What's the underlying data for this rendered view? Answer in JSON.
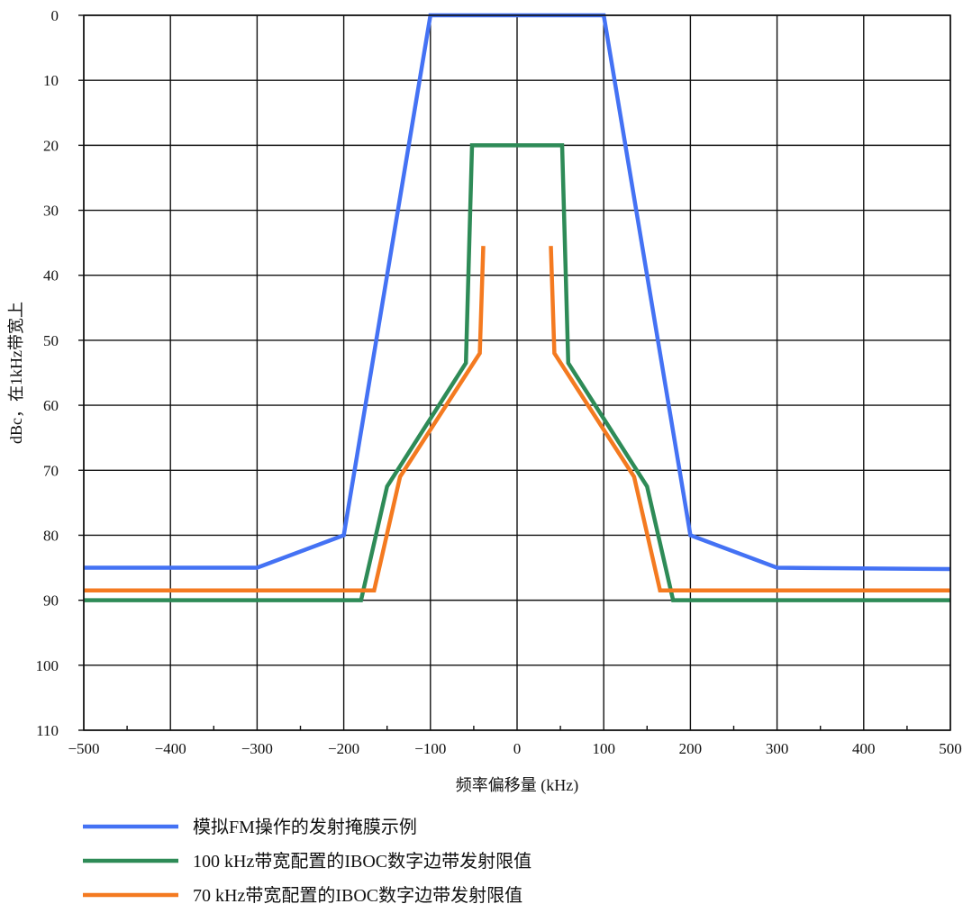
{
  "chart_data": {
    "type": "line",
    "xlabel": "频率偏移量 (kHz)",
    "ylabel": "dBc，在1kHz带宽上",
    "xlim": [
      -500,
      500
    ],
    "ylim": [
      0,
      110
    ],
    "y_inverted": true,
    "grid": true,
    "legend_position": "bottom",
    "x_ticks": [
      -500,
      -400,
      -300,
      -200,
      -100,
      0,
      100,
      200,
      300,
      400,
      500
    ],
    "x_tick_labels": [
      "−500",
      "−400",
      "−300",
      "−200",
      "−100",
      "0",
      "100",
      "200",
      "300",
      "400",
      "500"
    ],
    "y_ticks": [
      0,
      10,
      20,
      30,
      40,
      50,
      60,
      70,
      80,
      90,
      100,
      110
    ],
    "y_tick_labels": [
      "0",
      "10",
      "20",
      "30",
      "40",
      "50",
      "60",
      "70",
      "80",
      "90",
      "100",
      "110"
    ],
    "series": [
      {
        "name": "模拟FM操作的发射掩膜示例",
        "color": "#4472f4",
        "segments": [
          [
            [
              -500,
              85
            ],
            [
              -300,
              85
            ],
            [
              -200,
              80
            ],
            [
              -100,
              0
            ],
            [
              100,
              0
            ],
            [
              200,
              80
            ],
            [
              300,
              85
            ],
            [
              500,
              85.2
            ]
          ]
        ]
      },
      {
        "name": "100 kHz带宽配置的IBOC数字边带发射限值",
        "color": "#2e8b57",
        "segments": [
          [
            [
              -500,
              90
            ],
            [
              -180,
              90
            ],
            [
              -150,
              72.5
            ],
            [
              -59,
              53.5
            ],
            [
              -52,
              20
            ],
            [
              52,
              20
            ],
            [
              59,
              53.5
            ],
            [
              150,
              72.5
            ],
            [
              180,
              90
            ],
            [
              500,
              90
            ]
          ]
        ]
      },
      {
        "name": "70 kHz带宽配置的IBOC数字边带发射限值",
        "color": "#f47a20",
        "segments": [
          [
            [
              -500,
              88.5
            ],
            [
              -165,
              88.5
            ],
            [
              -135,
              71
            ],
            [
              -43,
              52
            ],
            [
              -39,
              35.5
            ]
          ],
          [
            [
              39,
              35.5
            ],
            [
              43,
              52
            ],
            [
              135,
              71
            ],
            [
              165,
              88.5
            ],
            [
              500,
              88.5
            ]
          ]
        ]
      }
    ]
  }
}
